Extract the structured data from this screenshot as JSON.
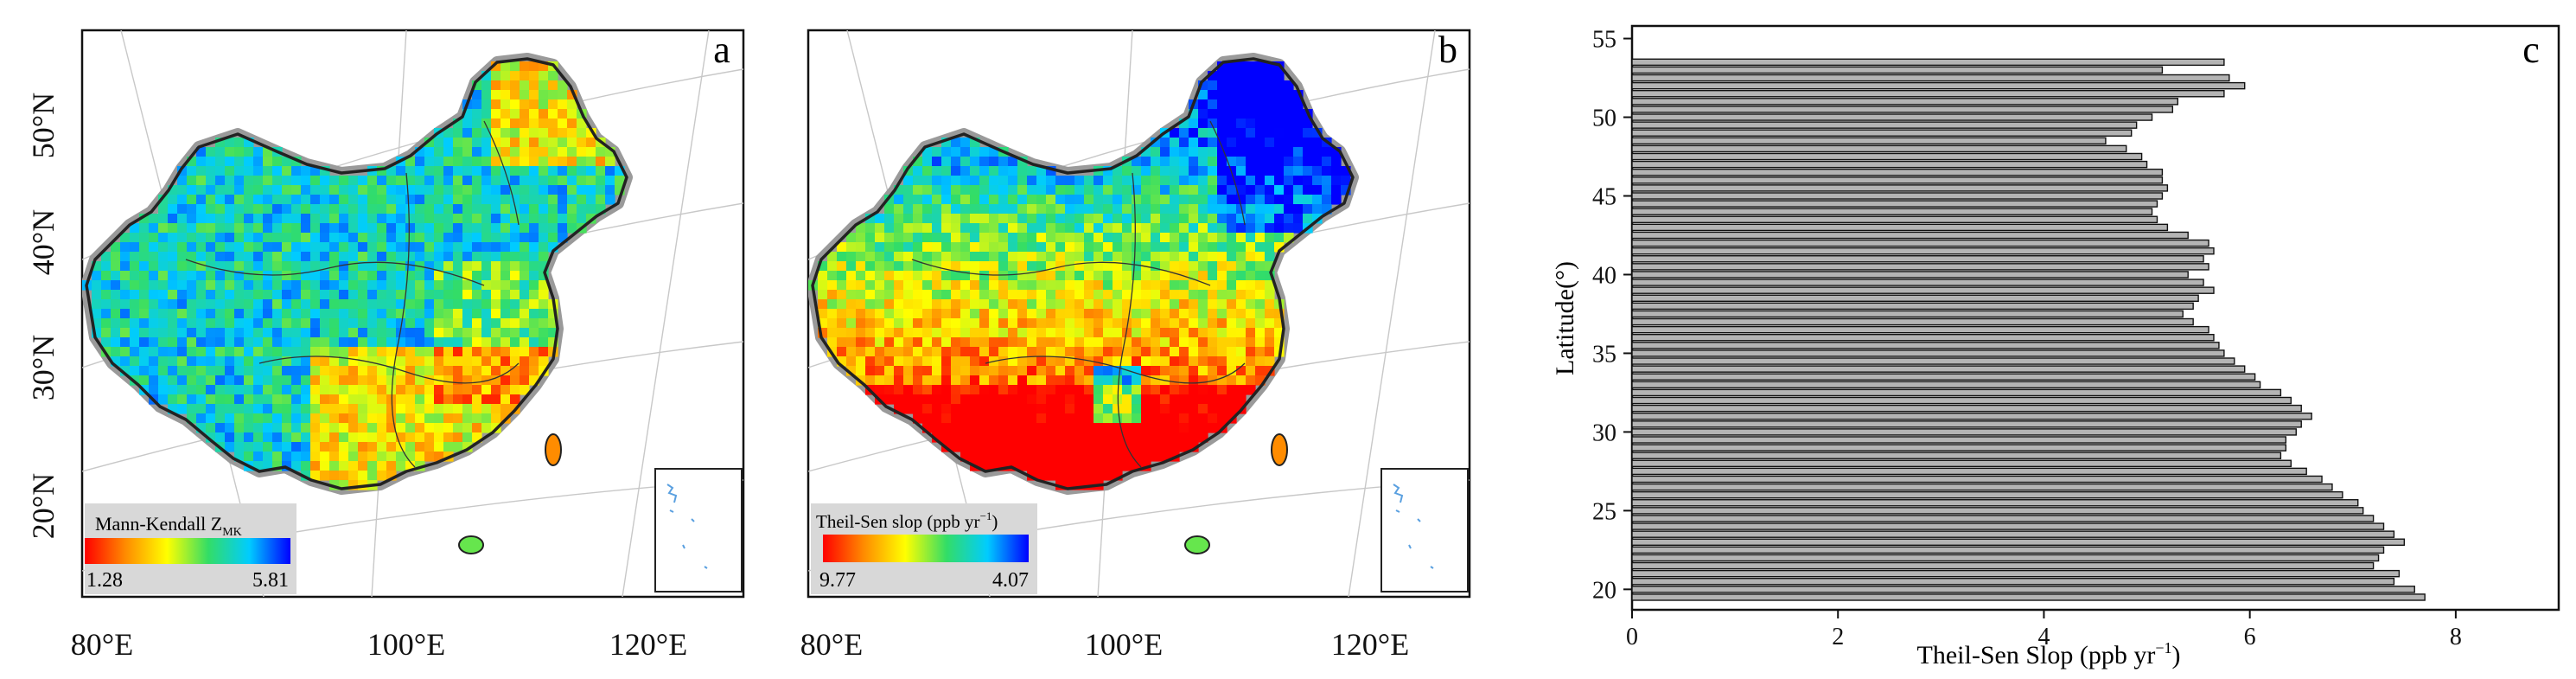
{
  "panels": {
    "a": {
      "letter": "a",
      "legend_title": "Mann-Kendall Z",
      "legend_title_sub": "MK",
      "legend_min": "1.28",
      "legend_max": "5.81"
    },
    "b": {
      "letter": "b",
      "legend_title": "Theil-Sen slop (ppb yr",
      "legend_title_sup": "−1",
      "legend_title_end": ")",
      "legend_min": "9.77",
      "legend_max": "4.07"
    },
    "c": {
      "letter": "c"
    }
  },
  "map_axes": {
    "lat_labels": [
      "50°N",
      "40°N",
      "30°N",
      "20°N"
    ],
    "lon_labels": [
      "80°E",
      "100°E",
      "120°E"
    ]
  },
  "colors": {
    "colormap_a": [
      "#ff0000",
      "#ff8c00",
      "#ffff00",
      "#33dd66",
      "#00ccff",
      "#0000ff"
    ],
    "colormap_b": [
      "#ff0000",
      "#ff8c00",
      "#ffff00",
      "#33dd66",
      "#00ccff",
      "#0000ff"
    ],
    "bar_fill": "#b4b4b4",
    "bar_stroke": "#111111",
    "legend_bg": "#d8d8d8",
    "land_outline": "#222222",
    "border_halo": "#9a9a9a"
  },
  "chart_data": {
    "type": "bar",
    "orientation": "horizontal",
    "xlabel": "Theil-Sen Slop (ppb yr",
    "xlabel_sup": "−1",
    "xlabel_end": ")",
    "ylabel": "Latitude(°)",
    "xlim": [
      0,
      9
    ],
    "ylim": [
      18.7,
      55.8
    ],
    "xticks": [
      0,
      2,
      4,
      6,
      8
    ],
    "yticks": [
      20,
      25,
      30,
      35,
      40,
      45,
      50,
      55
    ],
    "grid": false,
    "latitudes": [
      19.5,
      20,
      20.5,
      21,
      21.5,
      22,
      22.5,
      23,
      23.5,
      24,
      24.5,
      25,
      25.5,
      26,
      26.5,
      27,
      27.5,
      28,
      28.5,
      29,
      29.5,
      30,
      30.5,
      31,
      31.5,
      32,
      32.5,
      33,
      33.5,
      34,
      34.5,
      35,
      35.5,
      36,
      36.5,
      37,
      37.5,
      38,
      38.5,
      39,
      39.5,
      40,
      40.5,
      41,
      41.5,
      42,
      42.5,
      43,
      43.5,
      44,
      44.5,
      45,
      45.5,
      46,
      46.5,
      47,
      47.5,
      48,
      48.5,
      49,
      49.5,
      50,
      50.5,
      51,
      51.5,
      52,
      52.5,
      53,
      53.5
    ],
    "values": [
      7.7,
      7.6,
      7.4,
      7.45,
      7.2,
      7.25,
      7.3,
      7.5,
      7.4,
      7.3,
      7.2,
      7.1,
      7.05,
      6.9,
      6.8,
      6.7,
      6.55,
      6.4,
      6.3,
      6.35,
      6.35,
      6.45,
      6.5,
      6.6,
      6.5,
      6.4,
      6.3,
      6.1,
      6.05,
      5.95,
      5.85,
      5.75,
      5.7,
      5.65,
      5.6,
      5.45,
      5.35,
      5.45,
      5.5,
      5.65,
      5.55,
      5.4,
      5.6,
      5.55,
      5.65,
      5.6,
      5.4,
      5.2,
      5.1,
      5.05,
      5.1,
      5.15,
      5.2,
      5.15,
      5.15,
      5.0,
      4.95,
      4.8,
      4.6,
      4.85,
      4.9,
      5.05,
      5.25,
      5.3,
      5.75,
      5.95,
      5.8,
      5.15,
      5.75
    ]
  }
}
